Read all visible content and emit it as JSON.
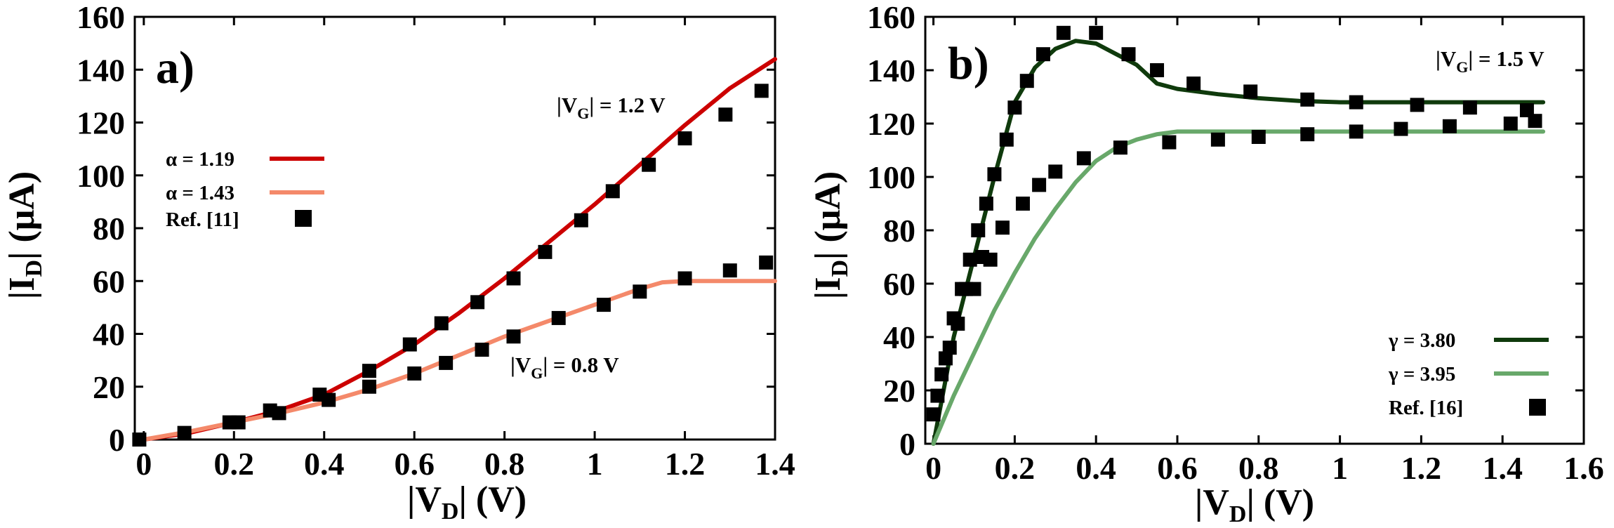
{
  "chart_data": [
    {
      "type": "line",
      "panel_label": "a)",
      "xlabel": "|V_D| (V)",
      "ylabel": "|I_D| (µA)",
      "xlim": [
        -0.02,
        1.4
      ],
      "ylim": [
        0,
        160
      ],
      "xticks": [
        0,
        0.2,
        0.4,
        0.6,
        0.8,
        1,
        1.2,
        1.4
      ],
      "xtick_labels": [
        "0",
        "0.2",
        "0.4",
        "0.6",
        "0.8",
        "1",
        "1.2",
        "1.4"
      ],
      "yticks": [
        0,
        20,
        40,
        60,
        80,
        100,
        120,
        140,
        160
      ],
      "ytick_labels": [
        "0",
        "20",
        "40",
        "60",
        "80",
        "100",
        "120",
        "140",
        "160"
      ],
      "annotations": [
        "|V_G| = 1.2 V",
        "|V_G| = 0.8 V"
      ],
      "legend_position": "left",
      "series": [
        {
          "name": "α = 1.19",
          "kind": "line",
          "color": "#cc0000",
          "x": [
            0,
            0.1,
            0.2,
            0.3,
            0.4,
            0.5,
            0.6,
            0.7,
            0.8,
            0.9,
            1.0,
            1.1,
            1.2,
            1.3,
            1.4
          ],
          "y": [
            0,
            2.5,
            6.5,
            11,
            17,
            26,
            36,
            48,
            61,
            75,
            89,
            104,
            119,
            133,
            144
          ]
        },
        {
          "name": "α = 1.43",
          "kind": "line",
          "color": "#f4896a",
          "x": [
            0,
            0.1,
            0.2,
            0.3,
            0.4,
            0.5,
            0.6,
            0.7,
            0.8,
            0.9,
            1.0,
            1.1,
            1.15,
            1.2,
            1.3,
            1.4
          ],
          "y": [
            0,
            3,
            6.5,
            10,
            14,
            19,
            25,
            32,
            39,
            45,
            51,
            57,
            59.5,
            60,
            60,
            60
          ]
        },
        {
          "name": "Ref. [11]",
          "kind": "scatter",
          "color": "#000000",
          "x": [
            -0.01,
            0.09,
            0.19,
            0.21,
            0.28,
            0.3,
            0.39,
            0.41,
            0.5,
            0.5,
            0.59,
            0.6,
            0.66,
            0.67,
            0.74,
            0.75,
            0.82,
            0.82,
            0.89,
            0.92,
            0.97,
            1.02,
            1.04,
            1.1,
            1.12,
            1.2,
            1.2,
            1.29,
            1.3,
            1.37,
            1.38
          ],
          "y": [
            0,
            2.5,
            6.5,
            6.5,
            11,
            10,
            17,
            15,
            26,
            20,
            36,
            25,
            44,
            29,
            52,
            34,
            61,
            39,
            71,
            46,
            83,
            51,
            94,
            56,
            104,
            61,
            114,
            123,
            64,
            132,
            67
          ]
        }
      ]
    },
    {
      "type": "line",
      "panel_label": "b)",
      "xlabel": "|V_D| (V)",
      "ylabel": "|I_D| (µA)",
      "xlim": [
        -0.02,
        1.6
      ],
      "ylim": [
        0,
        160
      ],
      "xticks": [
        0,
        0.2,
        0.4,
        0.6,
        0.8,
        1,
        1.2,
        1.4,
        1.6
      ],
      "xtick_labels": [
        "0",
        "0.2",
        "0.4",
        "0.6",
        "0.8",
        "1",
        "1.2",
        "1.4",
        "1.6"
      ],
      "yticks": [
        0,
        20,
        40,
        60,
        80,
        100,
        120,
        140,
        160
      ],
      "ytick_labels": [
        "0",
        "20",
        "40",
        "60",
        "80",
        "100",
        "120",
        "140",
        "160"
      ],
      "annotations": [
        "|V_G| = 1.5 V"
      ],
      "legend_position": "bottom-right",
      "series": [
        {
          "name": "γ = 3.80",
          "kind": "line",
          "color": "#0f3a0c",
          "x": [
            0,
            0.05,
            0.1,
            0.15,
            0.2,
            0.25,
            0.3,
            0.35,
            0.4,
            0.45,
            0.5,
            0.55,
            0.6,
            0.7,
            0.8,
            0.9,
            1.0,
            1.2,
            1.4,
            1.5
          ],
          "y": [
            0,
            40,
            70,
            100,
            128,
            141,
            148,
            151,
            150,
            146,
            142,
            135,
            133,
            131,
            129.5,
            128.5,
            128,
            128,
            128,
            128
          ]
        },
        {
          "name": "γ = 3.95",
          "kind": "line",
          "color": "#68a86a",
          "x": [
            0,
            0.05,
            0.1,
            0.15,
            0.2,
            0.25,
            0.3,
            0.35,
            0.4,
            0.45,
            0.5,
            0.55,
            0.6,
            0.7,
            0.8,
            1.0,
            1.2,
            1.4,
            1.5
          ],
          "y": [
            0,
            18,
            34,
            50,
            64,
            77,
            88,
            98,
            106,
            111,
            114,
            116,
            117,
            117,
            117,
            117,
            117,
            117,
            117
          ]
        },
        {
          "name": "Ref. [16]",
          "kind": "scatter",
          "color": "#000000",
          "x": [
            0.0,
            0.01,
            0.02,
            0.03,
            0.04,
            0.05,
            0.06,
            0.07,
            0.08,
            0.09,
            0.1,
            0.11,
            0.12,
            0.13,
            0.14,
            0.15,
            0.17,
            0.18,
            0.2,
            0.22,
            0.23,
            0.26,
            0.27,
            0.3,
            0.32,
            0.37,
            0.4,
            0.46,
            0.48,
            0.55,
            0.58,
            0.64,
            0.7,
            0.78,
            0.8,
            0.92,
            0.92,
            1.04,
            1.04,
            1.15,
            1.19,
            1.27,
            1.32,
            1.42,
            1.46,
            1.48
          ],
          "y": [
            11,
            18,
            26,
            32,
            36,
            47,
            45,
            58,
            58,
            69,
            58,
            80,
            70,
            90,
            69,
            101,
            81,
            114,
            126,
            90,
            136,
            97,
            146,
            102,
            154,
            107,
            154,
            111,
            146,
            140,
            113,
            135,
            114,
            132,
            115,
            129,
            116,
            128,
            117,
            118,
            127,
            119,
            126,
            120,
            125,
            121
          ]
        }
      ]
    }
  ]
}
